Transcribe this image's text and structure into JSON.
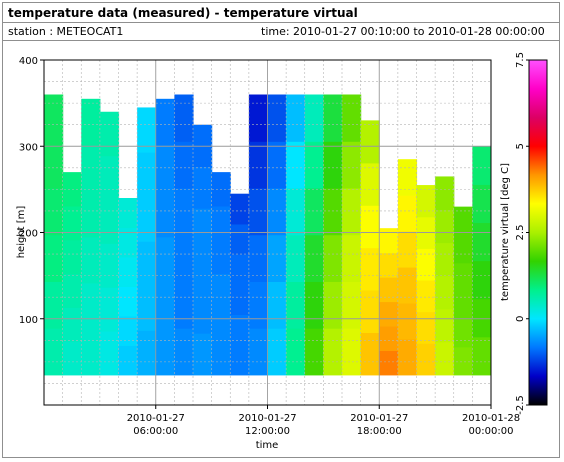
{
  "header": {
    "title": "temperature data (measured) - temperature virtual",
    "station": "station : METEOCAT1",
    "time_range": "time: 2010-01-27 00:10:00 to 2010-01-28 00:00:00"
  },
  "chart_data": {
    "type": "heatmap",
    "xlabel": "time",
    "ylabel": "height [m]",
    "colorbar_label": "temperature virtual [deg C]",
    "xlim": [
      0,
      24
    ],
    "ylim": [
      0,
      400
    ],
    "x_ticks": [
      {
        "value": 6,
        "line1": "2010-01-27",
        "line2": "06:00:00"
      },
      {
        "value": 12,
        "line1": "2010-01-27",
        "line2": "12:00:00"
      },
      {
        "value": 18,
        "line1": "2010-01-27",
        "line2": "18:00:00"
      },
      {
        "value": 24,
        "line1": "2010-01-28",
        "line2": "00:00:00"
      }
    ],
    "y_ticks": [
      100,
      200,
      300,
      400
    ],
    "colorbar": {
      "min": -2.5,
      "max": 7.5,
      "ticks": [
        "-2.5",
        "0",
        "2.5",
        "5",
        "7.5"
      ],
      "tick_values": [
        -2.5,
        0,
        2.5,
        5,
        7.5
      ],
      "colors": [
        "#000000",
        "#0000c8",
        "#0078ff",
        "#00e6ff",
        "#00f08c",
        "#32d200",
        "#aaf000",
        "#ffff00",
        "#ff9600",
        "#ff0000",
        "#dc0064",
        "#ff00c8",
        "#ff50ff"
      ]
    },
    "time_hours": [
      0.0,
      1.0,
      2.0,
      3.0,
      4.0,
      5.0,
      6.0,
      7.0,
      8.0,
      9.0,
      10.0,
      11.0,
      12.0,
      13.0,
      14.0,
      15.0,
      16.0,
      17.0,
      18.0,
      19.0,
      20.0,
      21.0,
      22.0,
      23.0
    ],
    "data_bottom_height": 35,
    "top_height": [
      360,
      270,
      355,
      340,
      240,
      345,
      355,
      360,
      325,
      270,
      245,
      360,
      360,
      360,
      360,
      360,
      360,
      330,
      205,
      285,
      255,
      265,
      230,
      300
    ],
    "temperature_c": [
      [
        0.6,
        0.7,
        0.9,
        1.0,
        1.1,
        1.1
      ],
      [
        0.4,
        0.5,
        0.6,
        0.7,
        0.8,
        0.9
      ],
      [
        0.4,
        0.4,
        0.5,
        0.6,
        0.6,
        0.7
      ],
      [
        0.2,
        0.3,
        0.4,
        0.5,
        0.5,
        0.6
      ],
      [
        -0.2,
        -0.1,
        0.0,
        0.1,
        0.2,
        0.3
      ],
      [
        -0.4,
        -0.3,
        -0.3,
        -0.2,
        -0.2,
        -0.1
      ],
      [
        -0.6,
        -0.6,
        -0.6,
        -0.7,
        -0.7,
        -0.8
      ],
      [
        -0.7,
        -0.8,
        -0.8,
        -0.8,
        -0.9,
        -1.0
      ],
      [
        -0.6,
        -0.7,
        -0.7,
        -0.7,
        -0.8,
        -0.9
      ],
      [
        -0.7,
        -0.7,
        -0.7,
        -0.8,
        -0.8,
        -0.9
      ],
      [
        -0.8,
        -0.8,
        -0.9,
        -0.9,
        -1.0,
        -1.2
      ],
      [
        -0.7,
        -0.8,
        -0.9,
        -1.1,
        -1.3,
        -1.5
      ],
      [
        -0.2,
        -0.3,
        -0.5,
        -0.7,
        -0.9,
        -1.1
      ],
      [
        0.8,
        0.7,
        0.5,
        0.3,
        0.0,
        -0.3
      ],
      [
        1.8,
        1.6,
        1.4,
        1.1,
        0.8,
        0.5
      ],
      [
        2.6,
        2.4,
        2.2,
        1.9,
        1.6,
        1.3
      ],
      [
        3.0,
        2.9,
        2.8,
        2.6,
        2.3,
        2.0
      ],
      [
        3.8,
        3.6,
        3.5,
        3.3,
        3.0,
        2.6
      ],
      [
        4.3,
        4.1,
        4.0,
        3.8,
        3.6,
        3.4
      ],
      [
        4.0,
        3.9,
        3.8,
        3.6,
        3.4,
        3.2
      ],
      [
        3.7,
        3.6,
        3.5,
        3.3,
        3.1,
        2.9
      ],
      [
        2.8,
        2.7,
        2.6,
        2.5,
        2.4,
        2.3
      ],
      [
        2.2,
        2.1,
        2.0,
        2.0,
        1.9,
        1.9
      ],
      [
        2.0,
        1.8,
        1.6,
        1.4,
        1.2,
        1.0
      ]
    ]
  }
}
